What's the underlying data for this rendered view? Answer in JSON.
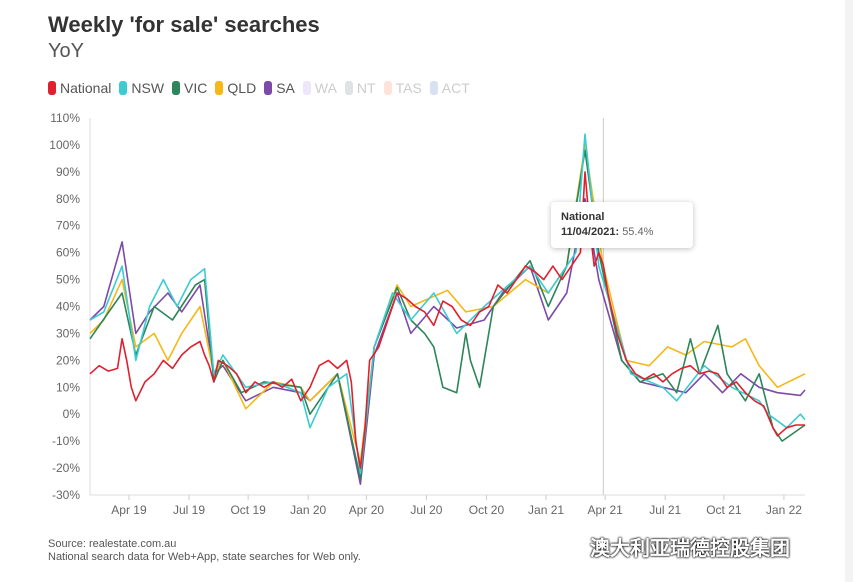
{
  "title": "Weekly 'for sale' searches",
  "subtitle": "YoY",
  "legend": [
    {
      "name": "National",
      "color": "#e0202e",
      "on": true
    },
    {
      "name": "NSW",
      "color": "#3ccbd3",
      "on": true
    },
    {
      "name": "VIC",
      "color": "#2d8659",
      "on": true
    },
    {
      "name": "QLD",
      "color": "#f5b817",
      "on": true
    },
    {
      "name": "SA",
      "color": "#7e4aa8",
      "on": true
    },
    {
      "name": "WA",
      "color": "#efe6fb",
      "on": false
    },
    {
      "name": "NT",
      "color": "#e0e3e6",
      "on": false
    },
    {
      "name": "TAS",
      "color": "#fde3d8",
      "on": false
    },
    {
      "name": "ACT",
      "color": "#d6e2f1",
      "on": false
    }
  ],
  "tooltip": {
    "series": "National",
    "date": "11/04/2021:",
    "value": "55.4%"
  },
  "footer": {
    "source": "Source: realestate.com.au",
    "note": "National search data for Web+App, state searches for Web only."
  },
  "watermark": "澳大利亚瑞德控股集团",
  "chart_data": {
    "type": "line",
    "title": "Weekly 'for sale' searches",
    "subtitle": "YoY",
    "x_unit": "weeks since 04/02/2019",
    "ylim": [
      -30,
      110
    ],
    "yticks": [
      "-30%",
      "-20%",
      "-10%",
      "0%",
      "10%",
      "20%",
      "30%",
      "40%",
      "50%",
      "60%",
      "70%",
      "80%",
      "90%",
      "100%",
      "110%"
    ],
    "xticks": [
      {
        "label": "Apr 19",
        "w": 8.5
      },
      {
        "label": "Jul 19",
        "w": 21.6
      },
      {
        "label": "Oct 19",
        "w": 34.5
      },
      {
        "label": "Jan 20",
        "w": 47.6
      },
      {
        "label": "Apr 20",
        "w": 60.3
      },
      {
        "label": "Jul 20",
        "w": 73.4
      },
      {
        "label": "Oct 20",
        "w": 86.5
      },
      {
        "label": "Jan 21",
        "w": 99.5
      },
      {
        "label": "Apr 21",
        "w": 112.4
      },
      {
        "label": "Jul 21",
        "w": 125.5
      },
      {
        "label": "Oct 21",
        "w": 138.3
      },
      {
        "label": "Jan 22",
        "w": 151.4
      }
    ],
    "xlim": [
      0,
      156
    ],
    "series": [
      {
        "name": "SA",
        "color": "#7e4aa8",
        "points": [
          [
            0,
            35
          ],
          [
            3,
            40
          ],
          [
            7,
            64
          ],
          [
            10,
            30
          ],
          [
            13,
            38
          ],
          [
            17,
            45
          ],
          [
            20,
            38
          ],
          [
            24,
            48
          ],
          [
            27,
            15
          ],
          [
            29,
            18
          ],
          [
            34,
            5
          ],
          [
            40,
            10
          ],
          [
            46,
            8
          ],
          [
            48,
            5
          ],
          [
            54,
            15
          ],
          [
            59,
            -26
          ],
          [
            62,
            22
          ],
          [
            67,
            45
          ],
          [
            70,
            30
          ],
          [
            75,
            40
          ],
          [
            80,
            32
          ],
          [
            86,
            35
          ],
          [
            90,
            45
          ],
          [
            96,
            55
          ],
          [
            100,
            35
          ],
          [
            104,
            45
          ],
          [
            108,
            80
          ],
          [
            111,
            50
          ],
          [
            116,
            20
          ],
          [
            120,
            12
          ],
          [
            125,
            10
          ],
          [
            130,
            8
          ],
          [
            134,
            15
          ],
          [
            138,
            8
          ],
          [
            142,
            15
          ],
          [
            146,
            10
          ],
          [
            150,
            8
          ],
          [
            155,
            7
          ],
          [
            156,
            9
          ]
        ]
      },
      {
        "name": "QLD",
        "color": "#f5b817",
        "points": [
          [
            0,
            30
          ],
          [
            3,
            35
          ],
          [
            7,
            50
          ],
          [
            10,
            25
          ],
          [
            14,
            30
          ],
          [
            17,
            20
          ],
          [
            20,
            30
          ],
          [
            24,
            40
          ],
          [
            27,
            15
          ],
          [
            29,
            20
          ],
          [
            34,
            2
          ],
          [
            40,
            12
          ],
          [
            46,
            10
          ],
          [
            48,
            5
          ],
          [
            54,
            15
          ],
          [
            59,
            -18
          ],
          [
            62,
            25
          ],
          [
            67,
            48
          ],
          [
            70,
            40
          ],
          [
            78,
            46
          ],
          [
            82,
            38
          ],
          [
            88,
            40
          ],
          [
            95,
            50
          ],
          [
            100,
            45
          ],
          [
            104,
            55
          ],
          [
            108,
            100
          ],
          [
            112,
            55
          ],
          [
            117,
            20
          ],
          [
            122,
            18
          ],
          [
            126,
            25
          ],
          [
            130,
            22
          ],
          [
            134,
            27
          ],
          [
            140,
            25
          ],
          [
            143,
            28
          ],
          [
            146,
            18
          ],
          [
            150,
            10
          ],
          [
            156,
            15
          ]
        ]
      },
      {
        "name": "VIC",
        "color": "#2d8659",
        "points": [
          [
            0,
            28
          ],
          [
            7,
            45
          ],
          [
            10,
            22
          ],
          [
            14,
            40
          ],
          [
            18,
            35
          ],
          [
            23,
            48
          ],
          [
            25,
            50
          ],
          [
            27,
            12
          ],
          [
            29,
            20
          ],
          [
            33,
            8
          ],
          [
            38,
            12
          ],
          [
            46,
            10
          ],
          [
            48,
            0
          ],
          [
            54,
            15
          ],
          [
            59,
            -24
          ],
          [
            62,
            25
          ],
          [
            67,
            47
          ],
          [
            70,
            35
          ],
          [
            73,
            30
          ],
          [
            75,
            25
          ],
          [
            77,
            10
          ],
          [
            80,
            8
          ],
          [
            82,
            30
          ],
          [
            83,
            20
          ],
          [
            85,
            10
          ],
          [
            88,
            40
          ],
          [
            96,
            57
          ],
          [
            100,
            40
          ],
          [
            104,
            55
          ],
          [
            108,
            98
          ],
          [
            111,
            60
          ],
          [
            116,
            20
          ],
          [
            120,
            12
          ],
          [
            125,
            15
          ],
          [
            128,
            8
          ],
          [
            131,
            28
          ],
          [
            133,
            15
          ],
          [
            137,
            33
          ],
          [
            139,
            15
          ],
          [
            143,
            5
          ],
          [
            146,
            15
          ],
          [
            149,
            -5
          ],
          [
            151,
            -10
          ],
          [
            156,
            -4
          ]
        ]
      },
      {
        "name": "NSW",
        "color": "#3ccbd3",
        "points": [
          [
            0,
            35
          ],
          [
            3,
            38
          ],
          [
            7,
            55
          ],
          [
            10,
            20
          ],
          [
            13,
            40
          ],
          [
            16,
            50
          ],
          [
            19,
            40
          ],
          [
            22,
            50
          ],
          [
            25,
            54
          ],
          [
            27,
            15
          ],
          [
            29,
            22
          ],
          [
            34,
            10
          ],
          [
            40,
            12
          ],
          [
            46,
            8
          ],
          [
            48,
            -5
          ],
          [
            52,
            10
          ],
          [
            56,
            15
          ],
          [
            59,
            -22
          ],
          [
            62,
            25
          ],
          [
            66,
            45
          ],
          [
            70,
            35
          ],
          [
            75,
            45
          ],
          [
            80,
            30
          ],
          [
            86,
            40
          ],
          [
            96,
            55
          ],
          [
            100,
            45
          ],
          [
            104,
            55
          ],
          [
            106,
            60
          ],
          [
            108,
            104
          ],
          [
            111,
            55
          ],
          [
            118,
            15
          ],
          [
            125,
            10
          ],
          [
            128,
            5
          ],
          [
            134,
            18
          ],
          [
            140,
            10
          ],
          [
            146,
            5
          ],
          [
            148,
            0
          ],
          [
            152,
            -5
          ],
          [
            155,
            0
          ],
          [
            156,
            -2
          ]
        ]
      },
      {
        "name": "National",
        "color": "#e0202e",
        "points": [
          [
            0,
            15
          ],
          [
            2,
            18
          ],
          [
            4,
            16
          ],
          [
            6,
            17
          ],
          [
            7,
            28
          ],
          [
            8,
            20
          ],
          [
            9,
            10
          ],
          [
            10,
            5
          ],
          [
            12,
            12
          ],
          [
            14,
            15
          ],
          [
            16,
            20
          ],
          [
            18,
            17
          ],
          [
            20,
            22
          ],
          [
            22,
            25
          ],
          [
            24,
            27
          ],
          [
            25,
            22
          ],
          [
            26,
            18
          ],
          [
            27,
            12
          ],
          [
            28,
            20
          ],
          [
            30,
            18
          ],
          [
            32,
            15
          ],
          [
            34,
            8
          ],
          [
            36,
            12
          ],
          [
            38,
            10
          ],
          [
            40,
            12
          ],
          [
            42,
            10
          ],
          [
            44,
            13
          ],
          [
            46,
            5
          ],
          [
            48,
            10
          ],
          [
            50,
            18
          ],
          [
            52,
            20
          ],
          [
            54,
            17
          ],
          [
            56,
            20
          ],
          [
            57,
            12
          ],
          [
            58,
            -10
          ],
          [
            59,
            -20
          ],
          [
            60,
            -5
          ],
          [
            61,
            20
          ],
          [
            63,
            25
          ],
          [
            65,
            35
          ],
          [
            67,
            45
          ],
          [
            69,
            43
          ],
          [
            71,
            40
          ],
          [
            73,
            38
          ],
          [
            75,
            33
          ],
          [
            77,
            42
          ],
          [
            79,
            40
          ],
          [
            81,
            35
          ],
          [
            83,
            33
          ],
          [
            85,
            38
          ],
          [
            87,
            40
          ],
          [
            89,
            48
          ],
          [
            91,
            45
          ],
          [
            93,
            50
          ],
          [
            95,
            55
          ],
          [
            97,
            53
          ],
          [
            99,
            50
          ],
          [
            101,
            55
          ],
          [
            103,
            50
          ],
          [
            105,
            55
          ],
          [
            107,
            60
          ],
          [
            108,
            90
          ],
          [
            109,
            70
          ],
          [
            110,
            55
          ],
          [
            111,
            60
          ],
          [
            112,
            55.4
          ],
          [
            113,
            45
          ],
          [
            115,
            30
          ],
          [
            117,
            20
          ],
          [
            119,
            15
          ],
          [
            121,
            13
          ],
          [
            123,
            15
          ],
          [
            125,
            12
          ],
          [
            127,
            15
          ],
          [
            129,
            17
          ],
          [
            131,
            18
          ],
          [
            133,
            15
          ],
          [
            135,
            16
          ],
          [
            137,
            15
          ],
          [
            139,
            10
          ],
          [
            141,
            12
          ],
          [
            143,
            8
          ],
          [
            145,
            5
          ],
          [
            147,
            3
          ],
          [
            149,
            -5
          ],
          [
            150,
            -8
          ],
          [
            152,
            -5
          ],
          [
            154,
            -4
          ],
          [
            156,
            -4
          ]
        ]
      }
    ]
  }
}
